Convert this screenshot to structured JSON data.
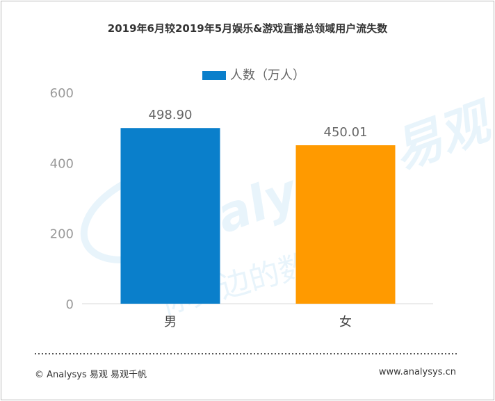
{
  "chart_data": {
    "type": "bar",
    "title": "2019年6月较2019年5月娱乐&游戏直播总领域用户流失数",
    "categories": [
      "男",
      "女"
    ],
    "series": [
      {
        "name": "人数（万人）",
        "values": [
          498.9,
          450.01
        ]
      }
    ],
    "value_labels": [
      "498.90",
      "450.01"
    ],
    "bar_colors": [
      "#0a7fcb",
      "#ff9a00"
    ],
    "legend_color": "#0a7fcb",
    "ylim": [
      0,
      600
    ],
    "yticks": [
      "0",
      "200",
      "400",
      "600"
    ],
    "ytick_values": [
      0,
      200,
      400,
      600
    ],
    "grid": false,
    "legend_position": "top-center"
  },
  "footer": {
    "copyright": "© Analysys 易观 易观千帆",
    "website": "www.analysys.cn"
  },
  "watermark": {
    "logo_text": "Analysys 易观",
    "slogan": "你身边的数据分析"
  }
}
